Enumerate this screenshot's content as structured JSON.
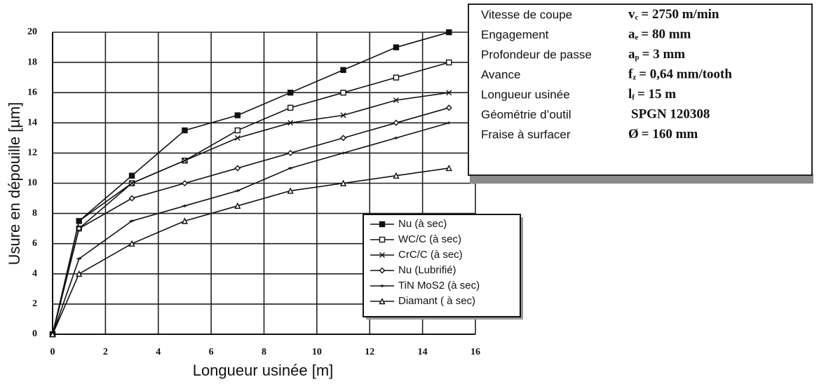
{
  "chart_data": {
    "type": "line",
    "xlabel": "Longueur usinée [m]",
    "ylabel": "Usure en dépouille [µm]",
    "x": [
      0,
      1,
      3,
      5,
      7,
      9,
      11,
      13,
      15
    ],
    "xlim": [
      0,
      16
    ],
    "xticks": [
      0,
      2,
      4,
      6,
      8,
      10,
      12,
      14,
      16
    ],
    "ylim": [
      0,
      20
    ],
    "yticks": [
      0,
      2,
      4,
      6,
      8,
      10,
      12,
      14,
      16,
      18,
      20
    ],
    "grid": true,
    "legend": "lower right",
    "series": [
      {
        "name": "Nu (à sec)",
        "color": "#111111",
        "marker": "filled-square",
        "values": [
          0,
          7.5,
          10.5,
          13.5,
          14.5,
          16,
          17.5,
          19,
          20
        ]
      },
      {
        "name": "WC/C (à sec)",
        "color": "#111111",
        "marker": "open-square",
        "values": [
          0,
          7,
          10,
          11.5,
          13.5,
          15,
          16,
          17,
          18
        ]
      },
      {
        "name": "CrC/C (à sec)",
        "color": "#111111",
        "marker": "cross",
        "values": [
          0,
          7.5,
          10,
          11.5,
          13,
          14,
          14.5,
          15.5,
          16
        ]
      },
      {
        "name": "Nu (Lubrifié)",
        "color": "#111111",
        "marker": "diamond",
        "values": [
          0,
          7,
          9,
          10,
          11,
          12,
          13,
          14,
          15
        ]
      },
      {
        "name": "TiN MoS2 (à sec)",
        "color": "#111111",
        "marker": "dash",
        "values": [
          0,
          5,
          7.5,
          8.5,
          9.5,
          11,
          12,
          13,
          14
        ]
      },
      {
        "name": "Diamant ( à sec)",
        "color": "#111111",
        "marker": "triangle",
        "values": [
          0,
          4,
          6,
          7.5,
          8.5,
          9.5,
          10,
          10.5,
          11
        ]
      }
    ],
    "parameters": [
      {
        "label": "Vitesse de coupe",
        "symbol": "v",
        "sub": "c",
        "value": "= 2750 m/min"
      },
      {
        "label": "Engagement",
        "symbol": "a",
        "sub": "e",
        "value": "= 80  mm"
      },
      {
        "label": "Profondeur de passe",
        "symbol": "a",
        "sub": "p",
        "value": "= 3 mm"
      },
      {
        "label": "Avance",
        "symbol": "f",
        "sub": "z",
        "value": "= 0,64 mm/tooth"
      },
      {
        "label": "Longueur usinée",
        "symbol": "l",
        "sub": "f",
        "value": "= 15  m"
      },
      {
        "label": "Géométrie d’outil",
        "value": "SPGN 120308"
      },
      {
        "label": "Fraise à surfacer",
        "symbol": "Ø",
        "value": "= 160 mm"
      }
    ]
  }
}
